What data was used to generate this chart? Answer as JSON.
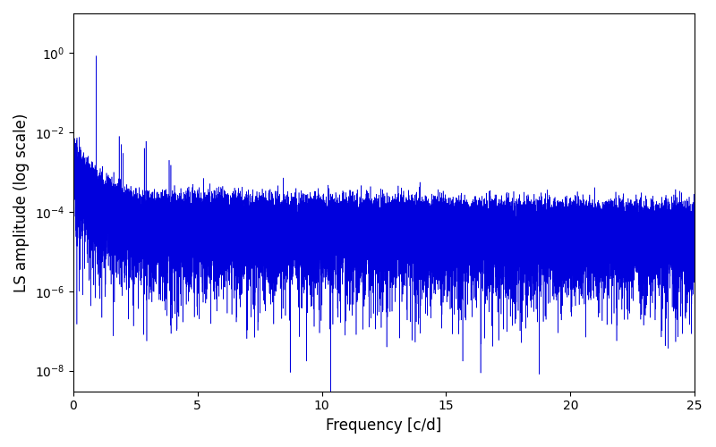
{
  "xlabel": "Frequency [c/d]",
  "ylabel": "LS amplitude (log scale)",
  "xlim": [
    0,
    25
  ],
  "ylim": [
    3e-09,
    10
  ],
  "yscale": "log",
  "line_color": "#0000dd",
  "linewidth": 0.4,
  "figsize": [
    8.0,
    5.0
  ],
  "dpi": 100,
  "seed": 12345,
  "freq_max": 25.0,
  "peak_freq": 0.93,
  "peak_amplitude": 0.85,
  "yticks": [
    1e-08,
    1e-06,
    0.0001,
    0.01,
    1.0
  ],
  "xticks": [
    0,
    5,
    10,
    15,
    20,
    25
  ]
}
